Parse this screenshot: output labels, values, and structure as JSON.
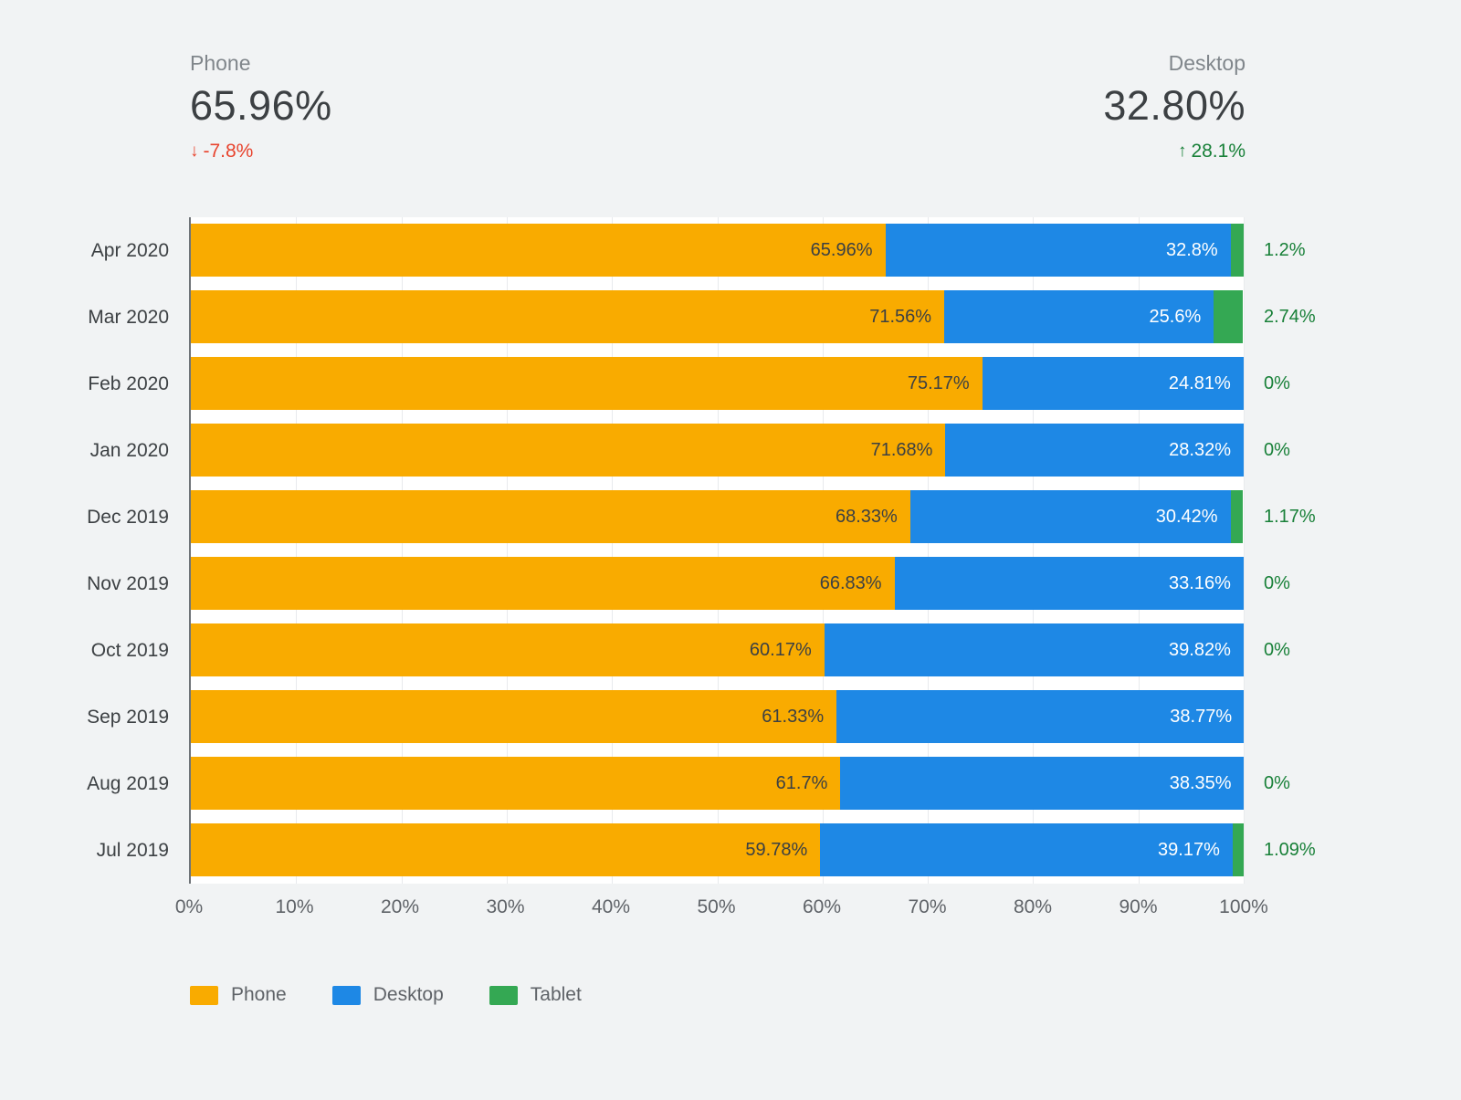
{
  "header": {
    "phone": {
      "label": "Phone",
      "value": "65.96%",
      "delta": "-7.8%",
      "delta_direction": "down"
    },
    "desktop": {
      "label": "Desktop",
      "value": "32.80%",
      "delta": "28.1%",
      "delta_direction": "up"
    }
  },
  "icons": {
    "down_arrow": "↓",
    "up_arrow": "↑"
  },
  "colors": {
    "background": "#f1f3f4",
    "plot_background": "#ffffff",
    "axis_line": "#6f7478",
    "gridline": "#e8eaed",
    "negative_delta": "#e8432d",
    "positive_delta": "#188038",
    "phone": "#F9AB00",
    "desktop": "#1E88E5",
    "tablet": "#34A853"
  },
  "chart_data": {
    "type": "bar",
    "orientation": "horizontal",
    "stacked": true,
    "categories": [
      "Apr 2020",
      "Mar 2020",
      "Feb 2020",
      "Jan 2020",
      "Dec 2019",
      "Nov 2019",
      "Oct 2019",
      "Sep 2019",
      "Aug 2019",
      "Jul 2019"
    ],
    "series": [
      {
        "name": "Phone",
        "color": "#F9AB00",
        "label_color": "#3c4043",
        "values": [
          65.96,
          71.56,
          75.17,
          71.68,
          68.33,
          66.83,
          60.17,
          61.33,
          61.7,
          59.78
        ],
        "labels": [
          "65.96%",
          "71.56%",
          "75.17%",
          "71.68%",
          "68.33%",
          "66.83%",
          "60.17%",
          "61.33%",
          "61.7%",
          "59.78%"
        ]
      },
      {
        "name": "Desktop",
        "color": "#1E88E5",
        "label_color": "#ffffff",
        "values": [
          32.8,
          25.6,
          24.81,
          28.32,
          30.42,
          33.16,
          39.82,
          38.77,
          38.35,
          39.17
        ],
        "labels": [
          "32.8%",
          "25.6%",
          "24.81%",
          "28.32%",
          "30.42%",
          "33.16%",
          "39.82%",
          "38.77%",
          "38.35%",
          "39.17%"
        ]
      },
      {
        "name": "Tablet",
        "color": "#34A853",
        "label_color": "#188038",
        "values": [
          1.2,
          2.74,
          0,
          0,
          1.17,
          0,
          0,
          0,
          0,
          1.09
        ],
        "labels": [
          "",
          "",
          "",
          "",
          "",
          "",
          "",
          "",
          "",
          ""
        ],
        "outside_labels": [
          "1.2%",
          "2.74%",
          "0%",
          "0%",
          "1.17%",
          "0%",
          "0%",
          "",
          "0%",
          "1.09%"
        ]
      }
    ],
    "x_ticks": [
      "0%",
      "10%",
      "20%",
      "30%",
      "40%",
      "50%",
      "60%",
      "70%",
      "80%",
      "90%",
      "100%"
    ],
    "xlim": [
      0,
      100
    ],
    "grid": true,
    "legend_position": "bottom",
    "legend": [
      "Phone",
      "Desktop",
      "Tablet"
    ]
  }
}
